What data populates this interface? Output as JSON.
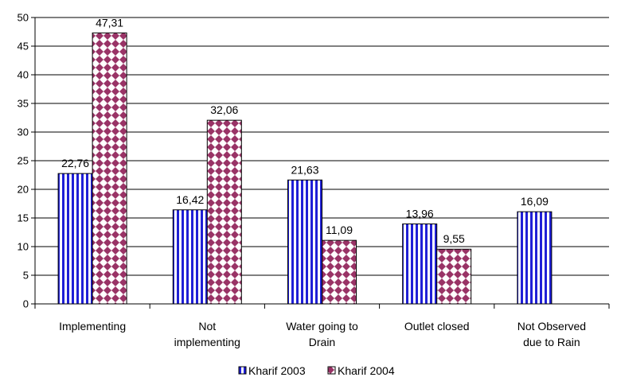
{
  "chart_data": {
    "type": "bar",
    "categories": [
      [
        "Implementing"
      ],
      [
        "Not",
        "implementing"
      ],
      [
        "Water going to",
        "Drain"
      ],
      [
        "Outlet closed"
      ],
      [
        "Not Observed",
        "due to Rain"
      ]
    ],
    "series": [
      {
        "name": "Kharif 2003",
        "values": [
          22.76,
          16.42,
          21.63,
          13.96,
          16.09
        ],
        "labels": [
          "22,76",
          "16,42",
          "21,63",
          "13,96",
          "16,09"
        ],
        "color": "#1f1fd6",
        "pattern": "vertical-stripes"
      },
      {
        "name": "Kharif 2004",
        "values": [
          47.31,
          32.06,
          11.09,
          9.55,
          null
        ],
        "labels": [
          "47,31",
          "32,06",
          "11,09",
          "9,55",
          null
        ],
        "color": "#993366",
        "pattern": "diamond-checker"
      }
    ],
    "ylim": [
      0,
      50
    ],
    "yticks": [
      "0",
      "5",
      "10",
      "15",
      "20",
      "25",
      "30",
      "35",
      "40",
      "45",
      "50"
    ],
    "grid": true,
    "legend_position": "bottom"
  }
}
